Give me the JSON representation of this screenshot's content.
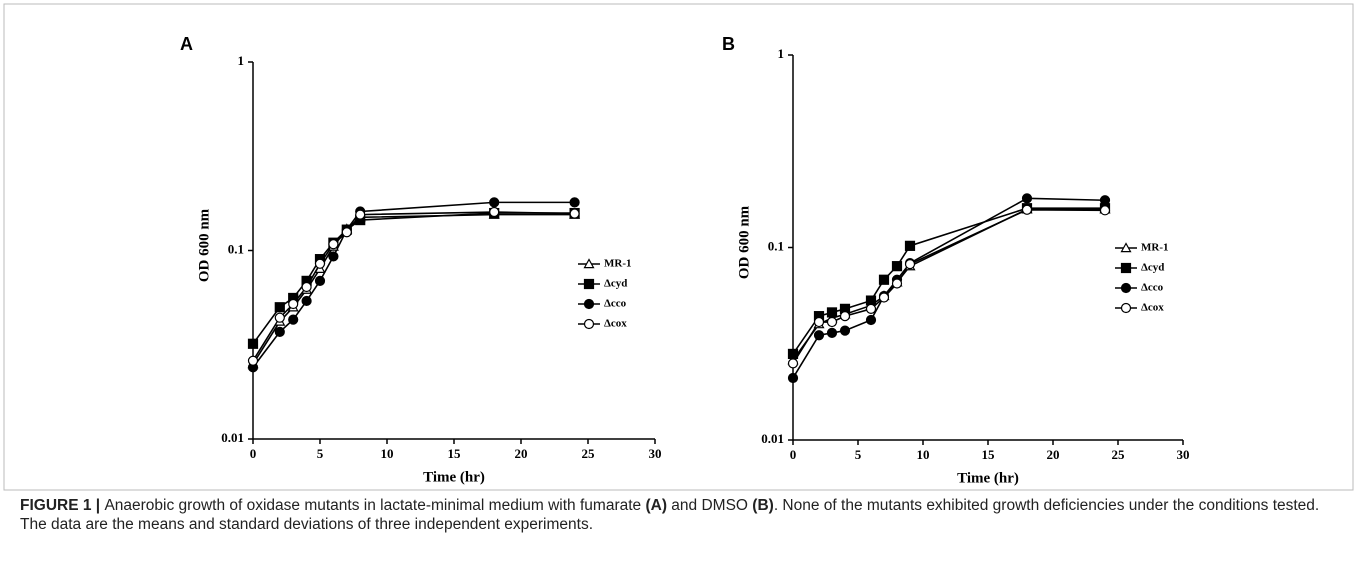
{
  "chart_data": [
    {
      "type": "line",
      "panel": "A",
      "xlabel": "Time (hr)",
      "ylabel": "OD 600 nm",
      "yscale": "log",
      "xlim": [
        0,
        30
      ],
      "xticks": [
        0,
        5,
        10,
        15,
        20,
        25,
        30
      ],
      "ylim": [
        0.01,
        1
      ],
      "yticks": [
        0.01,
        0.1,
        1
      ],
      "x": [
        0,
        2,
        3,
        4,
        5,
        6,
        7,
        8,
        18,
        24
      ],
      "series": [
        {
          "name": "MR-1",
          "color": "#000000",
          "marker": "triangle-open",
          "values": [
            0.025,
            0.042,
            0.05,
            0.062,
            0.08,
            0.105,
            0.13,
            0.15,
            0.155,
            0.155
          ]
        },
        {
          "name": "Δcyd",
          "color": "#000000",
          "marker": "square",
          "values": [
            0.032,
            0.05,
            0.056,
            0.069,
            0.09,
            0.11,
            0.129,
            0.145,
            0.158,
            0.158
          ]
        },
        {
          "name": "Δcco",
          "color": "#000000",
          "marker": "circle",
          "values": [
            0.024,
            0.037,
            0.043,
            0.054,
            0.069,
            0.093,
            0.129,
            0.161,
            0.18,
            0.18
          ]
        },
        {
          "name": "Δcox",
          "color": "#000000",
          "marker": "circle-open",
          "values": [
            0.026,
            0.044,
            0.052,
            0.064,
            0.085,
            0.108,
            0.125,
            0.155,
            0.16,
            0.157
          ]
        }
      ]
    },
    {
      "type": "line",
      "panel": "B",
      "xlabel": "Time (hr)",
      "ylabel": "OD 600 nm",
      "yscale": "log",
      "xlim": [
        0,
        30
      ],
      "xticks": [
        0,
        5,
        10,
        15,
        20,
        25,
        30
      ],
      "ylim": [
        0.01,
        1
      ],
      "yticks": [
        0.01,
        0.1,
        1
      ],
      "x": [
        0,
        2,
        3,
        4,
        6,
        7,
        8,
        9,
        18,
        24
      ],
      "series": [
        {
          "name": "MR-1",
          "color": "#000000",
          "marker": "triangle-open",
          "values": [
            0.026,
            0.04,
            0.043,
            0.045,
            0.05,
            0.056,
            0.066,
            0.08,
            0.158,
            0.158
          ]
        },
        {
          "name": "Δcyd",
          "color": "#000000",
          "marker": "square",
          "values": [
            0.028,
            0.044,
            0.046,
            0.048,
            0.053,
            0.068,
            0.08,
            0.102,
            0.16,
            0.16
          ]
        },
        {
          "name": "Δcco",
          "color": "#000000",
          "marker": "circle",
          "values": [
            0.021,
            0.035,
            0.036,
            0.037,
            0.042,
            0.056,
            0.068,
            0.083,
            0.18,
            0.176
          ]
        },
        {
          "name": "Δcox",
          "color": "#000000",
          "marker": "circle-open",
          "values": [
            0.025,
            0.041,
            0.041,
            0.044,
            0.048,
            0.055,
            0.065,
            0.082,
            0.157,
            0.156
          ]
        }
      ]
    }
  ],
  "caption": [
    "FIGURE 1 | ",
    "Anaerobic growth of oxidase mutants in lactate-minimal medium with fumarate ",
    "(A)",
    " and DMSO ",
    "(B)",
    ". None of the mutants exhibited growth deficiencies under the conditions tested. The data are the means and standard deviations of three independent experiments."
  ]
}
